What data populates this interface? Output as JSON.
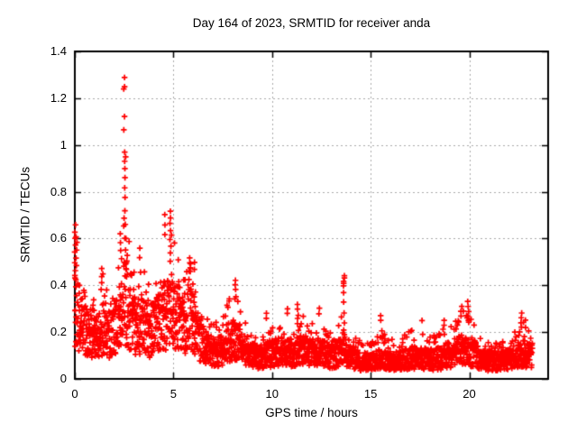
{
  "chart_data": {
    "type": "scatter",
    "title": "Day 164 of 2023, SRMTID for receiver anda",
    "xlabel": "GPS time / hours",
    "ylabel": "SRMTID / TECUs",
    "xlim": [
      0,
      24
    ],
    "ylim": [
      0,
      1.4
    ],
    "xticks": [
      0,
      5,
      10,
      15,
      20
    ],
    "xtick_labels": [
      "0",
      "5",
      "10",
      "15",
      "20"
    ],
    "yticks": [
      0,
      0.2,
      0.4,
      0.6,
      0.8,
      1,
      1.2,
      1.4
    ],
    "ytick_labels": [
      "0",
      "0.2",
      "0.4",
      "0.6",
      "0.8",
      "1",
      "1.2",
      "1.4"
    ],
    "grid": true,
    "legend": "none",
    "marker": "plus",
    "marker_color": "#ff0000",
    "grid_color": "#a8a8a8",
    "axis_color": "#000000",
    "background": "#ffffff",
    "x_data_end": 23.2,
    "points_per_hour": 110,
    "seed": 1316,
    "envelope": [
      [
        0.0,
        0.3,
        0.66
      ],
      [
        0.3,
        0.22,
        0.42
      ],
      [
        0.7,
        0.19,
        0.36
      ],
      [
        1.1,
        0.18,
        0.34
      ],
      [
        1.4,
        0.21,
        0.47
      ],
      [
        1.8,
        0.18,
        0.33
      ],
      [
        2.2,
        0.24,
        0.5
      ],
      [
        2.5,
        0.33,
        0.75
      ],
      [
        2.8,
        0.27,
        0.6
      ],
      [
        3.1,
        0.22,
        0.45
      ],
      [
        3.4,
        0.24,
        0.55
      ],
      [
        3.8,
        0.2,
        0.38
      ],
      [
        4.2,
        0.24,
        0.44
      ],
      [
        4.6,
        0.27,
        0.55
      ],
      [
        4.9,
        0.3,
        0.68
      ],
      [
        5.2,
        0.27,
        0.52
      ],
      [
        5.6,
        0.24,
        0.46
      ],
      [
        5.9,
        0.26,
        0.52
      ],
      [
        6.3,
        0.17,
        0.33
      ],
      [
        6.7,
        0.13,
        0.26
      ],
      [
        7.1,
        0.11,
        0.24
      ],
      [
        7.5,
        0.12,
        0.27
      ],
      [
        8.1,
        0.17,
        0.4
      ],
      [
        8.5,
        0.14,
        0.28
      ],
      [
        9.0,
        0.1,
        0.2
      ],
      [
        9.5,
        0.095,
        0.18
      ],
      [
        10.0,
        0.11,
        0.22
      ],
      [
        10.5,
        0.115,
        0.26
      ],
      [
        11.0,
        0.11,
        0.23
      ],
      [
        11.4,
        0.12,
        0.28
      ],
      [
        12.0,
        0.11,
        0.24
      ],
      [
        12.4,
        0.115,
        0.28
      ],
      [
        13.0,
        0.095,
        0.2
      ],
      [
        13.6,
        0.13,
        0.3
      ],
      [
        14.0,
        0.1,
        0.22
      ],
      [
        14.5,
        0.075,
        0.16
      ],
      [
        15.0,
        0.075,
        0.17
      ],
      [
        15.5,
        0.09,
        0.22
      ],
      [
        16.0,
        0.075,
        0.17
      ],
      [
        16.5,
        0.085,
        0.19
      ],
      [
        17.0,
        0.09,
        0.21
      ],
      [
        17.5,
        0.09,
        0.2
      ],
      [
        18.0,
        0.08,
        0.18
      ],
      [
        18.6,
        0.09,
        0.21
      ],
      [
        19.2,
        0.11,
        0.25
      ],
      [
        19.8,
        0.13,
        0.3
      ],
      [
        20.2,
        0.11,
        0.26
      ],
      [
        20.7,
        0.08,
        0.17
      ],
      [
        21.2,
        0.075,
        0.15
      ],
      [
        21.7,
        0.08,
        0.16
      ],
      [
        22.2,
        0.085,
        0.18
      ],
      [
        22.6,
        0.11,
        0.26
      ],
      [
        23.0,
        0.1,
        0.22
      ],
      [
        23.2,
        0.1,
        0.2
      ]
    ],
    "outlier_columns": [
      {
        "x": 0.02,
        "values": [
          0.66,
          0.63,
          0.6,
          0.57,
          0.54,
          0.5,
          0.46,
          0.43
        ]
      },
      {
        "x": 0.08,
        "values": [
          0.61,
          0.58,
          0.55,
          0.52
        ]
      },
      {
        "x": 1.35,
        "values": [
          0.47,
          0.44,
          0.41
        ]
      },
      {
        "x": 2.3,
        "values": [
          0.62,
          0.58,
          0.55
        ]
      },
      {
        "x": 2.5,
        "values": [
          1.28,
          1.25,
          1.24,
          1.13,
          1.07
        ]
      },
      {
        "x": 2.55,
        "values": [
          0.97,
          0.95,
          0.93,
          0.9,
          0.86,
          0.82,
          0.78,
          0.72,
          0.66,
          0.6,
          0.55
        ]
      },
      {
        "x": 2.62,
        "values": [
          0.5,
          0.47,
          0.44
        ]
      },
      {
        "x": 3.3,
        "values": [
          0.56,
          0.52
        ]
      },
      {
        "x": 4.55,
        "values": [
          0.7,
          0.66,
          0.62
        ]
      },
      {
        "x": 4.85,
        "values": [
          0.72,
          0.69,
          0.66,
          0.63,
          0.6,
          0.57,
          0.54,
          0.5
        ]
      },
      {
        "x": 5.85,
        "values": [
          0.52,
          0.49,
          0.46
        ]
      },
      {
        "x": 6.05,
        "values": [
          0.5,
          0.47
        ]
      },
      {
        "x": 8.15,
        "values": [
          0.42,
          0.4,
          0.38,
          0.35
        ]
      },
      {
        "x": 9.7,
        "values": [
          0.28,
          0.26
        ]
      },
      {
        "x": 10.8,
        "values": [
          0.3,
          0.28
        ]
      },
      {
        "x": 11.3,
        "values": [
          0.32,
          0.3,
          0.27
        ]
      },
      {
        "x": 12.4,
        "values": [
          0.3,
          0.28
        ]
      },
      {
        "x": 13.65,
        "values": [
          0.44,
          0.43,
          0.42,
          0.41,
          0.4,
          0.37,
          0.33,
          0.28,
          0.24,
          0.21
        ]
      },
      {
        "x": 15.5,
        "values": [
          0.27,
          0.25
        ]
      },
      {
        "x": 17.6,
        "values": [
          0.25
        ]
      },
      {
        "x": 18.7,
        "values": [
          0.25,
          0.23
        ]
      },
      {
        "x": 19.6,
        "values": [
          0.31,
          0.29,
          0.27
        ]
      },
      {
        "x": 19.95,
        "values": [
          0.33,
          0.31,
          0.29,
          0.27,
          0.25
        ]
      },
      {
        "x": 22.65,
        "values": [
          0.28,
          0.26,
          0.24,
          0.22
        ]
      },
      {
        "x": 22.85,
        "values": [
          0.25,
          0.22
        ]
      }
    ]
  }
}
